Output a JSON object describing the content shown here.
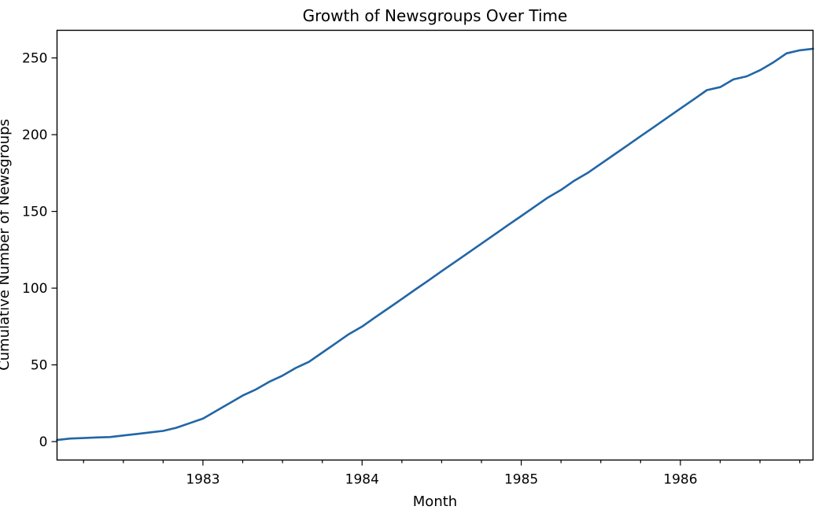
{
  "chart_data": {
    "type": "line",
    "title": "Growth of Newsgroups Over Time",
    "xlabel": "Month",
    "ylabel": "Cumulative Number of Newsgroups",
    "xlim": [
      "1982-02",
      "1986-11"
    ],
    "ylim": [
      -12,
      268
    ],
    "x_ticks": [
      "1983",
      "1984",
      "1985",
      "1986"
    ],
    "y_ticks": [
      0,
      50,
      100,
      150,
      200,
      250
    ],
    "grid": false,
    "legend": "none",
    "series": [
      {
        "color": "#2166a6",
        "points": [
          [
            "1982-02",
            1
          ],
          [
            "1982-03",
            2
          ],
          [
            "1982-04",
            2.3
          ],
          [
            "1982-05",
            2.7
          ],
          [
            "1982-06",
            3.0
          ],
          [
            "1982-07",
            4
          ],
          [
            "1982-08",
            5
          ],
          [
            "1982-09",
            6
          ],
          [
            "1982-10",
            7
          ],
          [
            "1982-11",
            9
          ],
          [
            "1982-12",
            12
          ],
          [
            "1983-01",
            15
          ],
          [
            "1983-02",
            20
          ],
          [
            "1983-03",
            25
          ],
          [
            "1983-04",
            30
          ],
          [
            "1983-05",
            34
          ],
          [
            "1983-06",
            39
          ],
          [
            "1983-07",
            43
          ],
          [
            "1983-08",
            48
          ],
          [
            "1983-09",
            52
          ],
          [
            "1983-10",
            58
          ],
          [
            "1983-11",
            64
          ],
          [
            "1983-12",
            70
          ],
          [
            "1984-01",
            75
          ],
          [
            "1984-02",
            81
          ],
          [
            "1984-03",
            87
          ],
          [
            "1984-04",
            93
          ],
          [
            "1984-05",
            99
          ],
          [
            "1984-06",
            105
          ],
          [
            "1984-07",
            111
          ],
          [
            "1984-08",
            117
          ],
          [
            "1984-09",
            123
          ],
          [
            "1984-10",
            129
          ],
          [
            "1984-11",
            135
          ],
          [
            "1984-12",
            141
          ],
          [
            "1985-01",
            147
          ],
          [
            "1985-02",
            153
          ],
          [
            "1985-03",
            159
          ],
          [
            "1985-04",
            164
          ],
          [
            "1985-05",
            170
          ],
          [
            "1985-06",
            175
          ],
          [
            "1985-07",
            181
          ],
          [
            "1985-08",
            187
          ],
          [
            "1985-09",
            193
          ],
          [
            "1985-10",
            199
          ],
          [
            "1985-11",
            205
          ],
          [
            "1985-12",
            211
          ],
          [
            "1986-01",
            217
          ],
          [
            "1986-02",
            223
          ],
          [
            "1986-03",
            229
          ],
          [
            "1986-04",
            231
          ],
          [
            "1986-05",
            236
          ],
          [
            "1986-06",
            238
          ],
          [
            "1986-07",
            242
          ],
          [
            "1986-08",
            247
          ],
          [
            "1986-09",
            253
          ],
          [
            "1986-10",
            255
          ],
          [
            "1986-11",
            256
          ]
        ]
      }
    ]
  }
}
